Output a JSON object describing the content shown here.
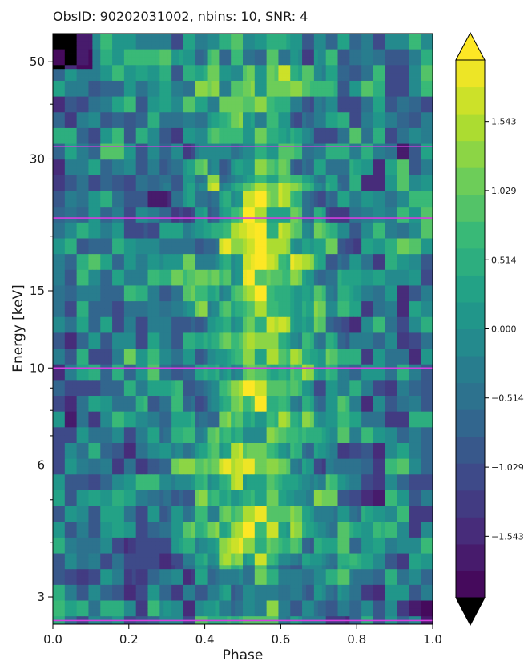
{
  "chart_data": {
    "type": "heatmap",
    "title": "ObsID: 90202031002, nbins: 10, SNR: 4",
    "xlabel": "Phase",
    "ylabel": "Energy [keV]",
    "xlim": [
      0.0,
      1.0
    ],
    "ylim": [
      2.6,
      58.0
    ],
    "yscale": "log",
    "x_ticks": [
      0.0,
      0.2,
      0.4,
      0.6,
      0.8,
      1.0
    ],
    "x_tick_labels": [
      "0.0",
      "0.2",
      "0.4",
      "0.6",
      "0.8",
      "1.0"
    ],
    "y_ticks": [
      3,
      6,
      10,
      15,
      30,
      50
    ],
    "y_tick_labels": [
      "3",
      "6",
      "10",
      "15",
      "30",
      "50"
    ],
    "energy_lines_keV": [
      2.65,
      10,
      22,
      32
    ],
    "colormap": "viridis",
    "colorbar": {
      "levels": 20,
      "min": -2.0,
      "max": 2.0,
      "extend": "both",
      "ticks": [
        -1.543,
        -1.029,
        -0.514,
        0.0,
        0.514,
        1.029,
        1.543
      ],
      "tick_labels": [
        "−1.543",
        "−1.029",
        "−0.514",
        "0.000",
        "0.514",
        "1.029",
        "1.543"
      ]
    },
    "colors": {
      "energy_line": "#d53fe0",
      "viridis_low": "#440154",
      "viridis_high": "#fde725",
      "under": "#000000",
      "over": "#fde725"
    }
  }
}
